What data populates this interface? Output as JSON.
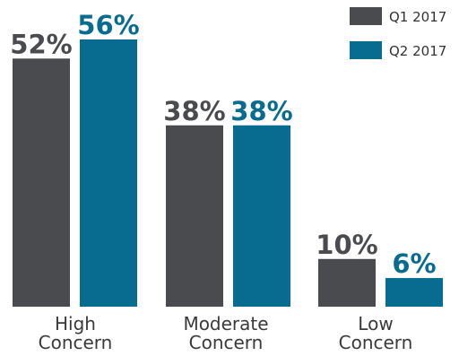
{
  "chart_data": {
    "type": "bar",
    "categories": [
      [
        "High",
        "Concern"
      ],
      [
        "Moderate",
        "Concern"
      ],
      [
        "Low",
        "Concern"
      ]
    ],
    "series": [
      {
        "name": "Q1 2017",
        "values": [
          52,
          38,
          10
        ],
        "labels": [
          "52%",
          "38%",
          "10%"
        ],
        "color": "#4a4b4f"
      },
      {
        "name": "Q2 2017",
        "values": [
          56,
          38,
          6
        ],
        "labels": [
          "56%",
          "38%",
          "6%"
        ],
        "color": "#086c91"
      }
    ],
    "ylim": [
      0,
      56
    ],
    "grid": false,
    "legend": "top-right"
  }
}
